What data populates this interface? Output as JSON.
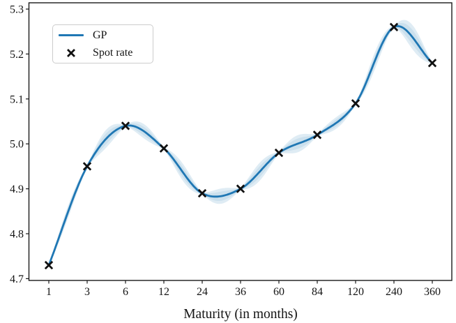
{
  "chart_data": {
    "type": "line",
    "title": "",
    "xlabel": "Maturity (in months)",
    "ylabel": "",
    "grid": false,
    "legend_position": "upper left",
    "categories": [
      1,
      3,
      6,
      12,
      24,
      36,
      60,
      84,
      120,
      240,
      360
    ],
    "x_tick_labels": [
      "1",
      "3",
      "6",
      "12",
      "24",
      "36",
      "60",
      "84",
      "120",
      "240",
      "360"
    ],
    "y_ticks": [
      4.7,
      4.8,
      4.9,
      5.0,
      5.1,
      5.2,
      5.3
    ],
    "y_tick_labels": [
      "4.7",
      "4.8",
      "4.9",
      "5.0",
      "5.1",
      "5.2",
      "5.3"
    ],
    "ylim": [
      4.696,
      5.314
    ],
    "series": [
      {
        "name": "GP",
        "type": "smooth-line",
        "color": "#1f77b4",
        "values": [
          4.73,
          4.95,
          5.04,
          4.99,
          4.89,
          4.9,
          4.98,
          5.02,
          5.09,
          5.26,
          5.18
        ]
      },
      {
        "name": "Spot rate",
        "type": "scatter",
        "marker": "x",
        "color": "#111111",
        "values": [
          4.73,
          4.95,
          5.04,
          4.99,
          4.89,
          4.9,
          4.98,
          5.02,
          5.09,
          5.26,
          5.18
        ]
      }
    ],
    "uncertainty_band": {
      "series": "GP",
      "color": "#1f77b4",
      "opacity": 0.14,
      "half_width_at_points": 0.003,
      "half_width_mid_segment": [
        0.014,
        0.02,
        0.016,
        0.019,
        0.017,
        0.02,
        0.019,
        0.013,
        0.019,
        0.027
      ]
    },
    "axis_color": "#1a1a1a"
  }
}
